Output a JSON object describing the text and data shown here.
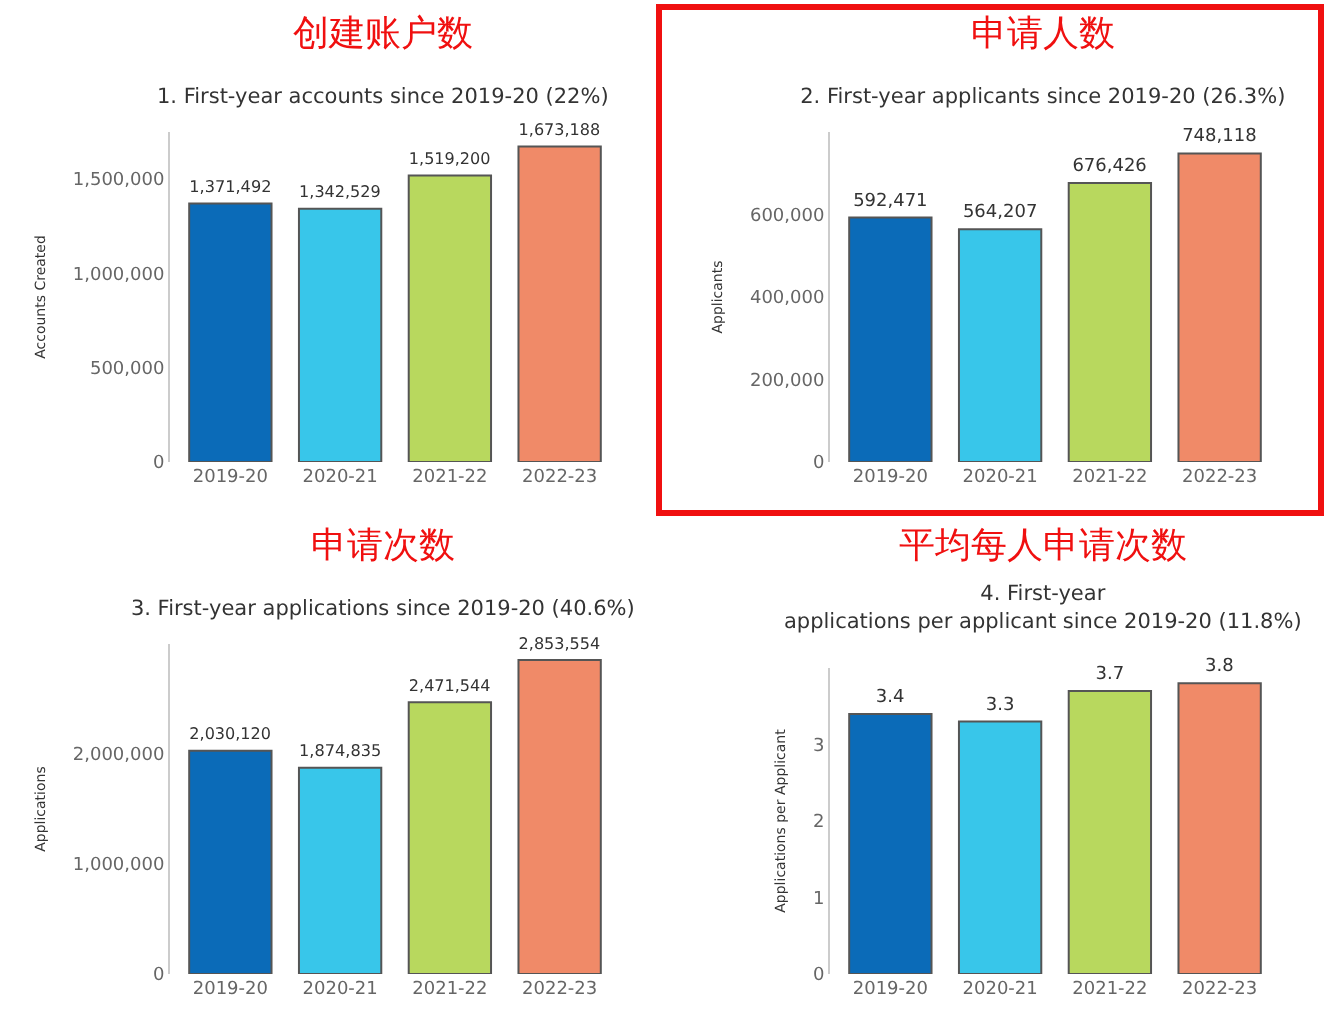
{
  "chart_data": [
    {
      "type": "bar",
      "title": "创建账户数",
      "subtitle": "1. First-year accounts since 2019-20 (22%)",
      "ylabel": "Accounts Created",
      "categories": [
        "2019-20",
        "2020-21",
        "2021-22",
        "2022-23"
      ],
      "values": [
        1371492,
        1342529,
        1519200,
        1673188
      ],
      "value_labels": [
        "1,371,492",
        "1,342,529",
        "1,519,200",
        "1,673,188"
      ],
      "colors": [
        "#0b6bb8",
        "#38c6ea",
        "#b8d85e",
        "#f08a68"
      ],
      "ylim": [
        0,
        1750000
      ],
      "yticks": [
        0,
        {
          "value": 500000,
          "label": "500,000"
        },
        {
          "value": 1000000,
          "label": "1,000,000"
        },
        {
          "value": 1500000,
          "label": "1,500,000"
        }
      ]
    },
    {
      "type": "bar",
      "title": "申请人数",
      "subtitle": "2. First-year applicants since 2019-20 (26.3%)",
      "ylabel": "Applicants",
      "categories": [
        "2019-20",
        "2020-21",
        "2021-22",
        "2022-23"
      ],
      "values": [
        592471,
        564207,
        676426,
        748118
      ],
      "value_labels": [
        "592,471",
        "564,207",
        "676,426",
        "748,118"
      ],
      "colors": [
        "#0b6bb8",
        "#38c6ea",
        "#b8d85e",
        "#f08a68"
      ],
      "ylim": [
        0,
        800000
      ],
      "yticks": [
        0,
        {
          "value": 200000,
          "label": "200,000"
        },
        {
          "value": 400000,
          "label": "400,000"
        },
        {
          "value": 600000,
          "label": "600,000"
        }
      ]
    },
    {
      "type": "bar",
      "title": "申请次数",
      "subtitle": "3. First-year applications since 2019-20 (40.6%)",
      "ylabel": "Applications",
      "categories": [
        "2019-20",
        "2020-21",
        "2021-22",
        "2022-23"
      ],
      "values": [
        2030120,
        1874835,
        2471544,
        2853554
      ],
      "value_labels": [
        "2,030,120",
        "1,874,835",
        "2,471,544",
        "2,853,554"
      ],
      "colors": [
        "#0b6bb8",
        "#38c6ea",
        "#b8d85e",
        "#f08a68"
      ],
      "ylim": [
        0,
        3000000
      ],
      "yticks": [
        0,
        {
          "value": 1000000,
          "label": "1,000,000"
        },
        {
          "value": 2000000,
          "label": "2,000,000"
        }
      ]
    },
    {
      "type": "bar",
      "title": "平均每人申请次数",
      "subtitle": "4. First-year\napplications per applicant since 2019-20 (11.8%)",
      "ylabel": "Applications per Applicant",
      "categories": [
        "2019-20",
        "2020-21",
        "2021-22",
        "2022-23"
      ],
      "values": [
        3.4,
        3.3,
        3.7,
        3.8
      ],
      "colors": [
        "#0b6bb8",
        "#38c6ea",
        "#b8d85e",
        "#f08a68"
      ],
      "ylim": [
        0,
        4
      ],
      "yticks": [
        0,
        1,
        2,
        3
      ],
      "data_labels": true
    }
  ]
}
